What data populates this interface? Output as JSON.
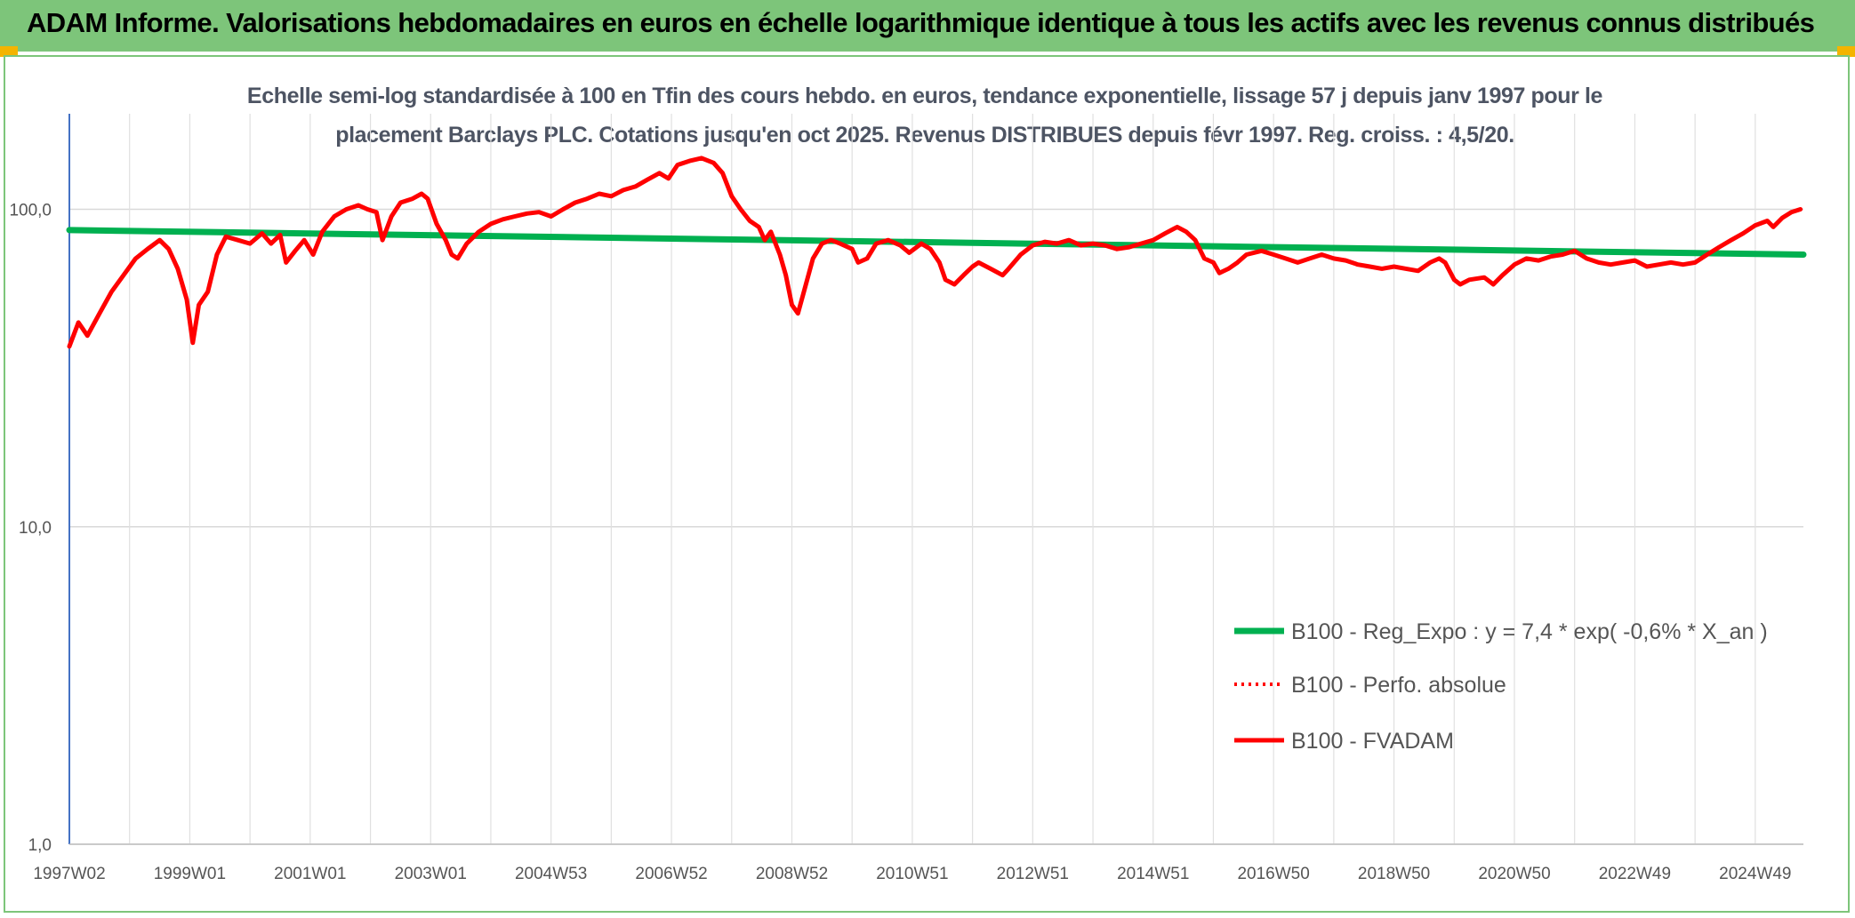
{
  "header": {
    "title": "ADAM Informe. Valorisations hebdomadaires en euros en échelle logarithmique identique à tous les actifs avec les revenus connus distribués",
    "banner_color": "#7dc57a"
  },
  "chart_data": {
    "type": "line",
    "title_lines": [
      "Echelle semi-log standardisée à 100 en Tfin des cours hebdo. en euros, tendance exponentielle, lissage 57 j depuis janv 1997 pour le",
      "placement Barclays PLC. Cotations jusqu'en oct 2025. Revenus DISTRIBUES depuis févr 1997. Reg. croiss. : 4,5/20."
    ],
    "y_scale": "log",
    "ylim": [
      1,
      200
    ],
    "xlim": [
      1997.0,
      2025.8
    ],
    "y_ticks": [
      {
        "value": 1,
        "label": "1,0"
      },
      {
        "value": 10,
        "label": "10,0"
      },
      {
        "value": 100,
        "label": "100,0"
      }
    ],
    "x_ticks": [
      {
        "value": 1997.0,
        "label": "1997W02"
      },
      {
        "value": 1999.0,
        "label": "1999W01"
      },
      {
        "value": 2001.0,
        "label": "2001W01"
      },
      {
        "value": 2003.0,
        "label": "2003W01"
      },
      {
        "value": 2005.0,
        "label": "2004W53"
      },
      {
        "value": 2007.0,
        "label": "2006W52"
      },
      {
        "value": 2009.0,
        "label": "2008W52"
      },
      {
        "value": 2011.0,
        "label": "2010W51"
      },
      {
        "value": 2013.0,
        "label": "2012W51"
      },
      {
        "value": 2015.0,
        "label": "2014W51"
      },
      {
        "value": 2017.0,
        "label": "2016W50"
      },
      {
        "value": 2019.0,
        "label": "2018W50"
      },
      {
        "value": 2021.0,
        "label": "2020W50"
      },
      {
        "value": 2023.0,
        "label": "2022W49"
      },
      {
        "value": 2025.0,
        "label": "2024W49"
      }
    ],
    "legend_position": "lower-right",
    "series": [
      {
        "name": "B100 - Reg_Expo : y = 7,4 * exp( -0,6% *  X_an )",
        "style": "solid",
        "color": "#00b050",
        "points": [
          [
            1997.0,
            86
          ],
          [
            2025.8,
            72
          ]
        ]
      },
      {
        "name": "B100 - Perfo. absolue",
        "style": "dotted",
        "color": "#ff0000",
        "points": []
      },
      {
        "name": "B100 - FVADAM",
        "style": "solid",
        "color": "#ff0000",
        "points": [
          [
            1997.0,
            37
          ],
          [
            1997.15,
            44
          ],
          [
            1997.3,
            40
          ],
          [
            1997.5,
            47
          ],
          [
            1997.7,
            55
          ],
          [
            1997.9,
            62
          ],
          [
            1998.1,
            70
          ],
          [
            1998.3,
            75
          ],
          [
            1998.5,
            80
          ],
          [
            1998.65,
            75
          ],
          [
            1998.8,
            65
          ],
          [
            1998.95,
            52
          ],
          [
            1999.05,
            38
          ],
          [
            1999.15,
            50
          ],
          [
            1999.3,
            55
          ],
          [
            1999.45,
            72
          ],
          [
            1999.6,
            82
          ],
          [
            1999.8,
            80
          ],
          [
            2000.0,
            78
          ],
          [
            2000.2,
            84
          ],
          [
            2000.35,
            78
          ],
          [
            2000.5,
            83
          ],
          [
            2000.6,
            68
          ],
          [
            2000.75,
            74
          ],
          [
            2000.9,
            80
          ],
          [
            2001.05,
            72
          ],
          [
            2001.2,
            85
          ],
          [
            2001.4,
            95
          ],
          [
            2001.6,
            100
          ],
          [
            2001.8,
            103
          ],
          [
            2001.95,
            100
          ],
          [
            2002.1,
            98
          ],
          [
            2002.2,
            80
          ],
          [
            2002.35,
            95
          ],
          [
            2002.5,
            105
          ],
          [
            2002.7,
            108
          ],
          [
            2002.85,
            112
          ],
          [
            2002.95,
            108
          ],
          [
            2003.1,
            90
          ],
          [
            2003.25,
            80
          ],
          [
            2003.35,
            72
          ],
          [
            2003.45,
            70
          ],
          [
            2003.6,
            78
          ],
          [
            2003.8,
            85
          ],
          [
            2004.0,
            90
          ],
          [
            2004.2,
            93
          ],
          [
            2004.4,
            95
          ],
          [
            2004.6,
            97
          ],
          [
            2004.8,
            98
          ],
          [
            2005.0,
            95
          ],
          [
            2005.2,
            100
          ],
          [
            2005.4,
            105
          ],
          [
            2005.6,
            108
          ],
          [
            2005.8,
            112
          ],
          [
            2006.0,
            110
          ],
          [
            2006.2,
            115
          ],
          [
            2006.4,
            118
          ],
          [
            2006.6,
            124
          ],
          [
            2006.8,
            130
          ],
          [
            2006.95,
            125
          ],
          [
            2007.1,
            138
          ],
          [
            2007.3,
            142
          ],
          [
            2007.5,
            145
          ],
          [
            2007.7,
            140
          ],
          [
            2007.85,
            130
          ],
          [
            2008.0,
            110
          ],
          [
            2008.15,
            100
          ],
          [
            2008.3,
            92
          ],
          [
            2008.45,
            88
          ],
          [
            2008.55,
            80
          ],
          [
            2008.65,
            85
          ],
          [
            2008.8,
            72
          ],
          [
            2008.9,
            62
          ],
          [
            2009.0,
            50
          ],
          [
            2009.1,
            47
          ],
          [
            2009.2,
            55
          ],
          [
            2009.35,
            70
          ],
          [
            2009.5,
            78
          ],
          [
            2009.65,
            80
          ],
          [
            2009.8,
            78
          ],
          [
            2010.0,
            75
          ],
          [
            2010.1,
            68
          ],
          [
            2010.25,
            70
          ],
          [
            2010.4,
            78
          ],
          [
            2010.6,
            80
          ],
          [
            2010.8,
            77
          ],
          [
            2010.95,
            73
          ],
          [
            2011.15,
            78
          ],
          [
            2011.3,
            75
          ],
          [
            2011.45,
            68
          ],
          [
            2011.55,
            60
          ],
          [
            2011.7,
            58
          ],
          [
            2011.85,
            62
          ],
          [
            2012.0,
            66
          ],
          [
            2012.1,
            68
          ],
          [
            2012.3,
            65
          ],
          [
            2012.5,
            62
          ],
          [
            2012.6,
            65
          ],
          [
            2012.8,
            72
          ],
          [
            2013.0,
            77
          ],
          [
            2013.2,
            79
          ],
          [
            2013.4,
            78
          ],
          [
            2013.6,
            80
          ],
          [
            2013.8,
            77
          ],
          [
            2014.0,
            78
          ],
          [
            2014.2,
            77
          ],
          [
            2014.4,
            75
          ],
          [
            2014.6,
            76
          ],
          [
            2014.8,
            78
          ],
          [
            2015.0,
            80
          ],
          [
            2015.2,
            84
          ],
          [
            2015.4,
            88
          ],
          [
            2015.55,
            85
          ],
          [
            2015.7,
            80
          ],
          [
            2015.85,
            70
          ],
          [
            2016.0,
            68
          ],
          [
            2016.1,
            63
          ],
          [
            2016.25,
            65
          ],
          [
            2016.4,
            68
          ],
          [
            2016.55,
            72
          ],
          [
            2016.8,
            74
          ],
          [
            2017.0,
            72
          ],
          [
            2017.2,
            70
          ],
          [
            2017.4,
            68
          ],
          [
            2017.6,
            70
          ],
          [
            2017.8,
            72
          ],
          [
            2018.0,
            70
          ],
          [
            2018.2,
            69
          ],
          [
            2018.4,
            67
          ],
          [
            2018.6,
            66
          ],
          [
            2018.8,
            65
          ],
          [
            2019.0,
            66
          ],
          [
            2019.2,
            65
          ],
          [
            2019.4,
            64
          ],
          [
            2019.6,
            68
          ],
          [
            2019.75,
            70
          ],
          [
            2019.85,
            68
          ],
          [
            2020.0,
            60
          ],
          [
            2020.1,
            58
          ],
          [
            2020.25,
            60
          ],
          [
            2020.5,
            61
          ],
          [
            2020.65,
            58
          ],
          [
            2020.8,
            62
          ],
          [
            2021.0,
            67
          ],
          [
            2021.2,
            70
          ],
          [
            2021.4,
            69
          ],
          [
            2021.6,
            71
          ],
          [
            2021.8,
            72
          ],
          [
            2022.0,
            74
          ],
          [
            2022.2,
            70
          ],
          [
            2022.4,
            68
          ],
          [
            2022.6,
            67
          ],
          [
            2022.8,
            68
          ],
          [
            2023.0,
            69
          ],
          [
            2023.2,
            66
          ],
          [
            2023.4,
            67
          ],
          [
            2023.6,
            68
          ],
          [
            2023.8,
            67
          ],
          [
            2024.0,
            68
          ],
          [
            2024.2,
            72
          ],
          [
            2024.4,
            76
          ],
          [
            2024.6,
            80
          ],
          [
            2024.8,
            84
          ],
          [
            2025.0,
            89
          ],
          [
            2025.2,
            92
          ],
          [
            2025.3,
            88
          ],
          [
            2025.45,
            94
          ],
          [
            2025.6,
            98
          ],
          [
            2025.75,
            100
          ]
        ]
      }
    ]
  }
}
